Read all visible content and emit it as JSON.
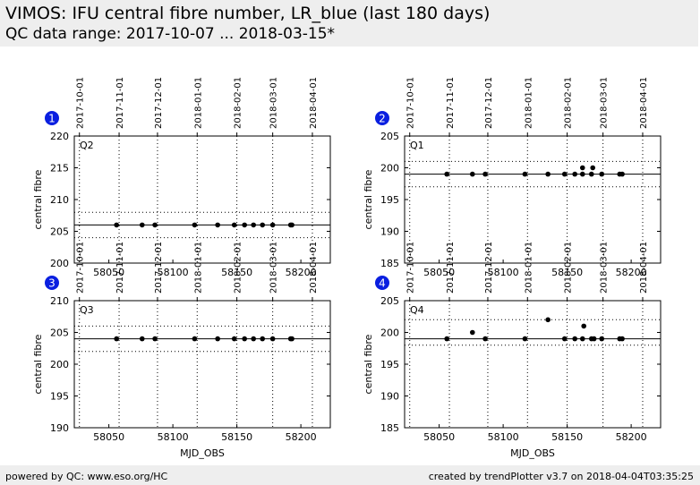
{
  "header": {
    "title": "VIMOS: IFU central fibre number, LR_blue (last 180 days)",
    "subtitle": "QC data range: 2017-10-07 ... 2018-03-15*"
  },
  "footer": {
    "left": "powered by QC: www.eso.org/HC",
    "right": "created by trendPlotter v3.7 on 2018-04-04T03:35:25"
  },
  "colors": {
    "badge": "#0a1fe0",
    "points": "#000000"
  },
  "date_ticks": [
    "2017-10-01",
    "2017-11-01",
    "2017-12-01",
    "2018-01-01",
    "2018-02-01",
    "2018-03-01",
    "2018-04-01"
  ],
  "date_tick_mjd": [
    58027,
    58058,
    58088,
    58119,
    58150,
    58178,
    58209
  ],
  "chart_data": [
    {
      "type": "scatter",
      "badge": "1",
      "label": "Q2",
      "ylabel": "central fibre",
      "xlabel": "",
      "xlim": [
        58023,
        58223
      ],
      "ylim": [
        200,
        220
      ],
      "xticks": [
        58050,
        58100,
        58150,
        58200
      ],
      "yticks": [
        200,
        205,
        210,
        215,
        220
      ],
      "ref": 206,
      "limits": [
        204,
        208
      ],
      "x": [
        58056,
        58076,
        58086,
        58117,
        58135,
        58148,
        58156,
        58163,
        58170,
        58178,
        58192,
        58193
      ],
      "y": [
        206,
        206,
        206,
        206,
        206,
        206,
        206,
        206,
        206,
        206,
        206,
        206
      ]
    },
    {
      "type": "scatter",
      "badge": "2",
      "label": "Q1",
      "ylabel": "central fibre",
      "xlabel": "",
      "xlim": [
        58023,
        58223
      ],
      "ylim": [
        185,
        205
      ],
      "xticks": [
        58050,
        58100,
        58150,
        58200
      ],
      "yticks": [
        185,
        190,
        195,
        200,
        205
      ],
      "ref": 199,
      "limits": [
        197,
        201
      ],
      "x": [
        58056,
        58076,
        58086,
        58117,
        58135,
        58148,
        58156,
        58162,
        58162,
        58169,
        58170,
        58177,
        58191,
        58193
      ],
      "y": [
        199,
        199,
        199,
        199,
        199,
        199,
        199,
        199,
        200,
        199,
        200,
        199,
        199,
        199
      ]
    },
    {
      "type": "scatter",
      "badge": "3",
      "label": "Q3",
      "ylabel": "central fibre",
      "xlabel": "MJD_OBS",
      "xlim": [
        58023,
        58223
      ],
      "ylim": [
        190,
        210
      ],
      "xticks": [
        58050,
        58100,
        58150,
        58200
      ],
      "yticks": [
        190,
        195,
        200,
        205,
        210
      ],
      "ref": 204,
      "limits": [
        202,
        206
      ],
      "x": [
        58056,
        58076,
        58086,
        58117,
        58135,
        58148,
        58156,
        58163,
        58170,
        58178,
        58192,
        58193
      ],
      "y": [
        204,
        204,
        204,
        204,
        204,
        204,
        204,
        204,
        204,
        204,
        204,
        204
      ]
    },
    {
      "type": "scatter",
      "badge": "4",
      "label": "Q4",
      "ylabel": "central fibre",
      "xlabel": "MJD_OBS",
      "xlim": [
        58023,
        58223
      ],
      "ylim": [
        185,
        205
      ],
      "xticks": [
        58050,
        58100,
        58150,
        58200
      ],
      "yticks": [
        185,
        190,
        195,
        200,
        205
      ],
      "ref": 199,
      "limits": [
        198,
        202
      ],
      "x": [
        58056,
        58076,
        58086,
        58117,
        58135,
        58148,
        58156,
        58162,
        58163,
        58169,
        58171,
        58177,
        58191,
        58193
      ],
      "y": [
        199,
        200,
        199,
        199,
        202,
        199,
        199,
        199,
        201,
        199,
        199,
        199,
        199,
        199
      ]
    }
  ]
}
